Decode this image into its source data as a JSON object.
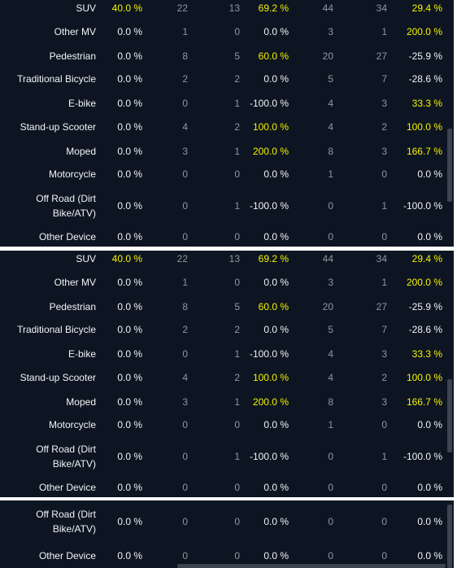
{
  "panels": [
    {
      "rows": [
        {
          "label": "SUV",
          "v1": "40.0 %",
          "n1": "22",
          "n2": "13",
          "pct1": "69.2 %",
          "n3": "44",
          "n4": "34",
          "pct2": "29.4 %",
          "hl": [
            "v1",
            "pct1",
            "pct2"
          ]
        },
        {
          "label": "Other MV",
          "v1": "0.0 %",
          "n1": "1",
          "n2": "0",
          "pct1": "0.0 %",
          "n3": "3",
          "n4": "1",
          "pct2": "200.0 %",
          "hl": [
            "pct2"
          ]
        },
        {
          "label": "Pedestrian",
          "v1": "0.0 %",
          "n1": "8",
          "n2": "5",
          "pct1": "60.0 %",
          "n3": "20",
          "n4": "27",
          "pct2": "-25.9 %",
          "hl": [
            "pct1"
          ]
        },
        {
          "label": "Traditional Bicycle",
          "v1": "0.0 %",
          "n1": "2",
          "n2": "2",
          "pct1": "0.0 %",
          "n3": "5",
          "n4": "7",
          "pct2": "-28.6 %",
          "hl": []
        },
        {
          "label": "E-bike",
          "v1": "0.0 %",
          "n1": "0",
          "n2": "1",
          "pct1": "-100.0 %",
          "n3": "4",
          "n4": "3",
          "pct2": "33.3 %",
          "hl": [
            "pct2"
          ]
        },
        {
          "label": "Stand-up Scooter",
          "v1": "0.0 %",
          "n1": "4",
          "n2": "2",
          "pct1": "100.0 %",
          "n3": "4",
          "n4": "2",
          "pct2": "100.0 %",
          "hl": [
            "pct1",
            "pct2"
          ]
        },
        {
          "label": "Moped",
          "v1": "0.0 %",
          "n1": "3",
          "n2": "1",
          "pct1": "200.0 %",
          "n3": "8",
          "n4": "3",
          "pct2": "166.7 %",
          "hl": [
            "pct1",
            "pct2"
          ]
        },
        {
          "label": "Motorcycle",
          "v1": "0.0 %",
          "n1": "0",
          "n2": "0",
          "pct1": "0.0 %",
          "n3": "1",
          "n4": "0",
          "pct2": "0.0 %",
          "hl": []
        },
        {
          "label": "Off Road (Dirt\nBike/ATV)",
          "v1": "0.0 %",
          "n1": "0",
          "n2": "1",
          "pct1": "-100.0 %",
          "n3": "0",
          "n4": "1",
          "pct2": "-100.0 %",
          "hl": []
        },
        {
          "label": "Other Device",
          "v1": "0.0 %",
          "n1": "0",
          "n2": "0",
          "pct1": "0.0 %",
          "n3": "0",
          "n4": "0",
          "pct2": "0.0 %",
          "hl": []
        }
      ]
    },
    {
      "rows": [
        {
          "label": "SUV",
          "v1": "40.0 %",
          "n1": "22",
          "n2": "13",
          "pct1": "69.2 %",
          "n3": "44",
          "n4": "34",
          "pct2": "29.4 %",
          "hl": [
            "v1",
            "pct1",
            "pct2"
          ]
        },
        {
          "label": "Other MV",
          "v1": "0.0 %",
          "n1": "1",
          "n2": "0",
          "pct1": "0.0 %",
          "n3": "3",
          "n4": "1",
          "pct2": "200.0 %",
          "hl": [
            "pct2"
          ]
        },
        {
          "label": "Pedestrian",
          "v1": "0.0 %",
          "n1": "8",
          "n2": "5",
          "pct1": "60.0 %",
          "n3": "20",
          "n4": "27",
          "pct2": "-25.9 %",
          "hl": [
            "pct1"
          ]
        },
        {
          "label": "Traditional Bicycle",
          "v1": "0.0 %",
          "n1": "2",
          "n2": "2",
          "pct1": "0.0 %",
          "n3": "5",
          "n4": "7",
          "pct2": "-28.6 %",
          "hl": []
        },
        {
          "label": "E-bike",
          "v1": "0.0 %",
          "n1": "0",
          "n2": "1",
          "pct1": "-100.0 %",
          "n3": "4",
          "n4": "3",
          "pct2": "33.3 %",
          "hl": [
            "pct2"
          ]
        },
        {
          "label": "Stand-up Scooter",
          "v1": "0.0 %",
          "n1": "4",
          "n2": "2",
          "pct1": "100.0 %",
          "n3": "4",
          "n4": "2",
          "pct2": "100.0 %",
          "hl": [
            "pct1",
            "pct2"
          ]
        },
        {
          "label": "Moped",
          "v1": "0.0 %",
          "n1": "3",
          "n2": "1",
          "pct1": "200.0 %",
          "n3": "8",
          "n4": "3",
          "pct2": "166.7 %",
          "hl": [
            "pct1",
            "pct2"
          ]
        },
        {
          "label": "Motorcycle",
          "v1": "0.0 %",
          "n1": "0",
          "n2": "0",
          "pct1": "0.0 %",
          "n3": "1",
          "n4": "0",
          "pct2": "0.0 %",
          "hl": []
        },
        {
          "label": "Off Road (Dirt\nBike/ATV)",
          "v1": "0.0 %",
          "n1": "0",
          "n2": "1",
          "pct1": "-100.0 %",
          "n3": "0",
          "n4": "1",
          "pct2": "-100.0 %",
          "hl": []
        },
        {
          "label": "Other Device",
          "v1": "0.0 %",
          "n1": "0",
          "n2": "0",
          "pct1": "0.0 %",
          "n3": "0",
          "n4": "0",
          "pct2": "0.0 %",
          "hl": []
        }
      ]
    },
    {
      "rows": [
        {
          "label": "Off Road (Dirt\nBike/ATV)",
          "v1": "0.0 %",
          "n1": "0",
          "n2": "0",
          "pct1": "0.0 %",
          "n3": "0",
          "n4": "0",
          "pct2": "0.0 %",
          "hl": []
        },
        {
          "label": "Other Device",
          "v1": "0.0 %",
          "n1": "0",
          "n2": "0",
          "pct1": "0.0 %",
          "n3": "0",
          "n4": "0",
          "pct2": "0.0 %",
          "hl": []
        }
      ]
    }
  ],
  "colors": {
    "background": "#0d1522",
    "highlight": "#f5f201",
    "text": "#f2f4f7",
    "muted": "#8f97a3"
  }
}
